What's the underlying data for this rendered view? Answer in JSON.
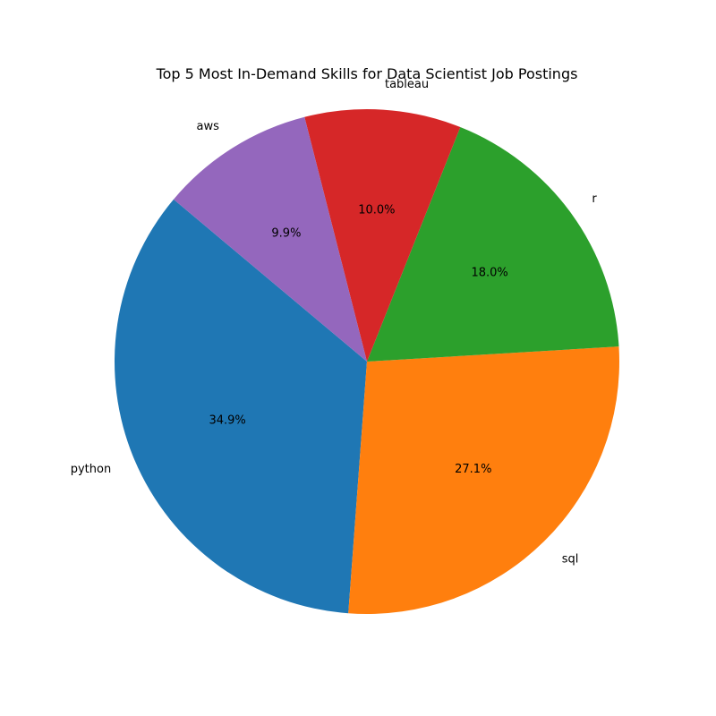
{
  "chart_data": {
    "type": "pie",
    "title": "Top 5 Most In-Demand Skills for Data Scientist Job Postings",
    "start_angle_deg": 140,
    "direction": "counterclockwise",
    "slices": [
      {
        "label": "python",
        "value": 34.9,
        "pct_label": "34.9%",
        "color": "#1f77b4"
      },
      {
        "label": "sql",
        "value": 27.1,
        "pct_label": "27.1%",
        "color": "#ff7f0e"
      },
      {
        "label": "r",
        "value": 18.0,
        "pct_label": "18.0%",
        "color": "#2ca02c"
      },
      {
        "label": "tableau",
        "value": 10.0,
        "pct_label": "10.0%",
        "color": "#d62728"
      },
      {
        "label": "aws",
        "value": 9.9,
        "pct_label": "9.9%",
        "color": "#9467bd"
      }
    ]
  }
}
